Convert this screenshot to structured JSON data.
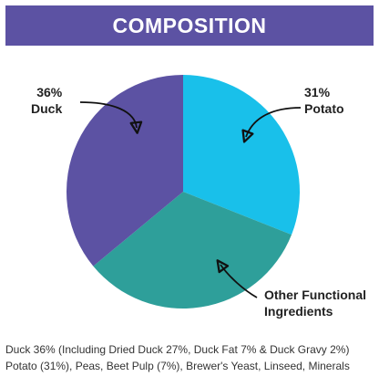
{
  "colors": {
    "banner": "#5c52a3",
    "duck": "#5c52a3",
    "potato": "#19c0ea",
    "other": "#2e9f9a"
  },
  "banner": {
    "title": "COMPOSITION"
  },
  "chart_data": {
    "type": "pie",
    "slices": [
      {
        "key": "potato",
        "percent": 31,
        "label_pct": "31%",
        "label_name": "Potato"
      },
      {
        "key": "other",
        "percent": 33,
        "label_pct": "",
        "label_name": "Other Functional Ingredients"
      },
      {
        "key": "duck",
        "percent": 36,
        "label_pct": "36%",
        "label_name": "Duck"
      }
    ]
  },
  "composition": {
    "line1": "Duck 36% (Including Dried Duck 27%, Duck Fat 7% & Duck Gravy 2%)",
    "line2": "Potato (31%), Peas, Beet Pulp (7%), Brewer's Yeast, Linseed, Minerals"
  }
}
